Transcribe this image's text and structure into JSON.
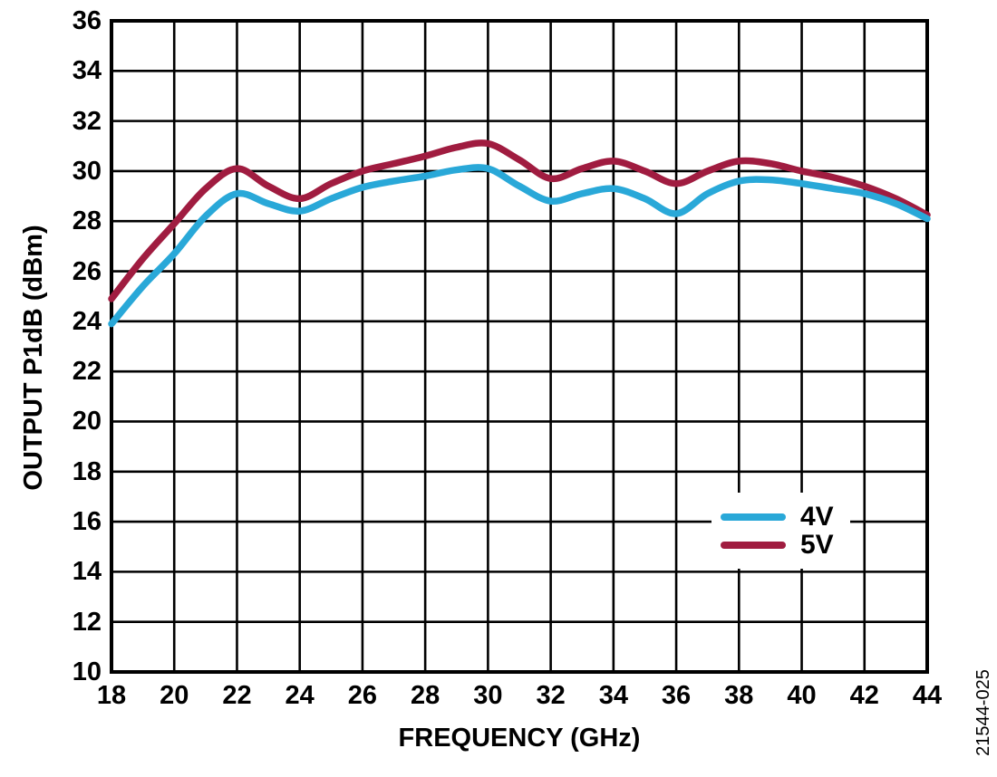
{
  "figure": {
    "id_label": "21544-025",
    "background": "#FFFFFF"
  },
  "colors": {
    "grid": "#000000",
    "border": "#000000",
    "text": "#000000",
    "series_4v": "#29A8D8",
    "series_5v": "#A01C40"
  },
  "chart_data": {
    "type": "line",
    "title": "",
    "xlabel": "FREQUENCY (GHz)",
    "ylabel": "OUTPUT P1dB (dBm)",
    "xlim": [
      18,
      44
    ],
    "ylim": [
      10,
      36
    ],
    "x_ticks": [
      18,
      20,
      22,
      24,
      26,
      28,
      30,
      32,
      34,
      36,
      38,
      40,
      42,
      44
    ],
    "y_ticks": [
      36,
      34,
      32,
      30,
      28,
      26,
      24,
      22,
      20,
      18,
      16,
      14,
      12,
      10
    ],
    "grid": "full grid, 2-unit spacing on both axes",
    "legend_position": "inside plot, lower right",
    "x": [
      18,
      19,
      20,
      21,
      22,
      23,
      24,
      25,
      26,
      27,
      28,
      29,
      30,
      31,
      32,
      33,
      34,
      35,
      36,
      37,
      38,
      39,
      40,
      41,
      42,
      43,
      44
    ],
    "series": [
      {
        "name": "4V",
        "color": "#29A8D8",
        "values": [
          23.9,
          25.4,
          26.7,
          28.2,
          29.1,
          28.7,
          28.4,
          28.9,
          29.35,
          29.6,
          29.8,
          30.05,
          30.1,
          29.4,
          28.8,
          29.1,
          29.3,
          28.9,
          28.3,
          29.1,
          29.6,
          29.65,
          29.5,
          29.3,
          29.1,
          28.7,
          28.1
        ]
      },
      {
        "name": "5V",
        "color": "#A01C40",
        "values": [
          24.9,
          26.5,
          27.9,
          29.3,
          30.1,
          29.4,
          28.9,
          29.5,
          30.0,
          30.3,
          30.6,
          30.95,
          31.1,
          30.45,
          29.7,
          30.1,
          30.4,
          30.0,
          29.5,
          30.0,
          30.4,
          30.3,
          30.0,
          29.75,
          29.4,
          28.9,
          28.25
        ]
      }
    ]
  }
}
